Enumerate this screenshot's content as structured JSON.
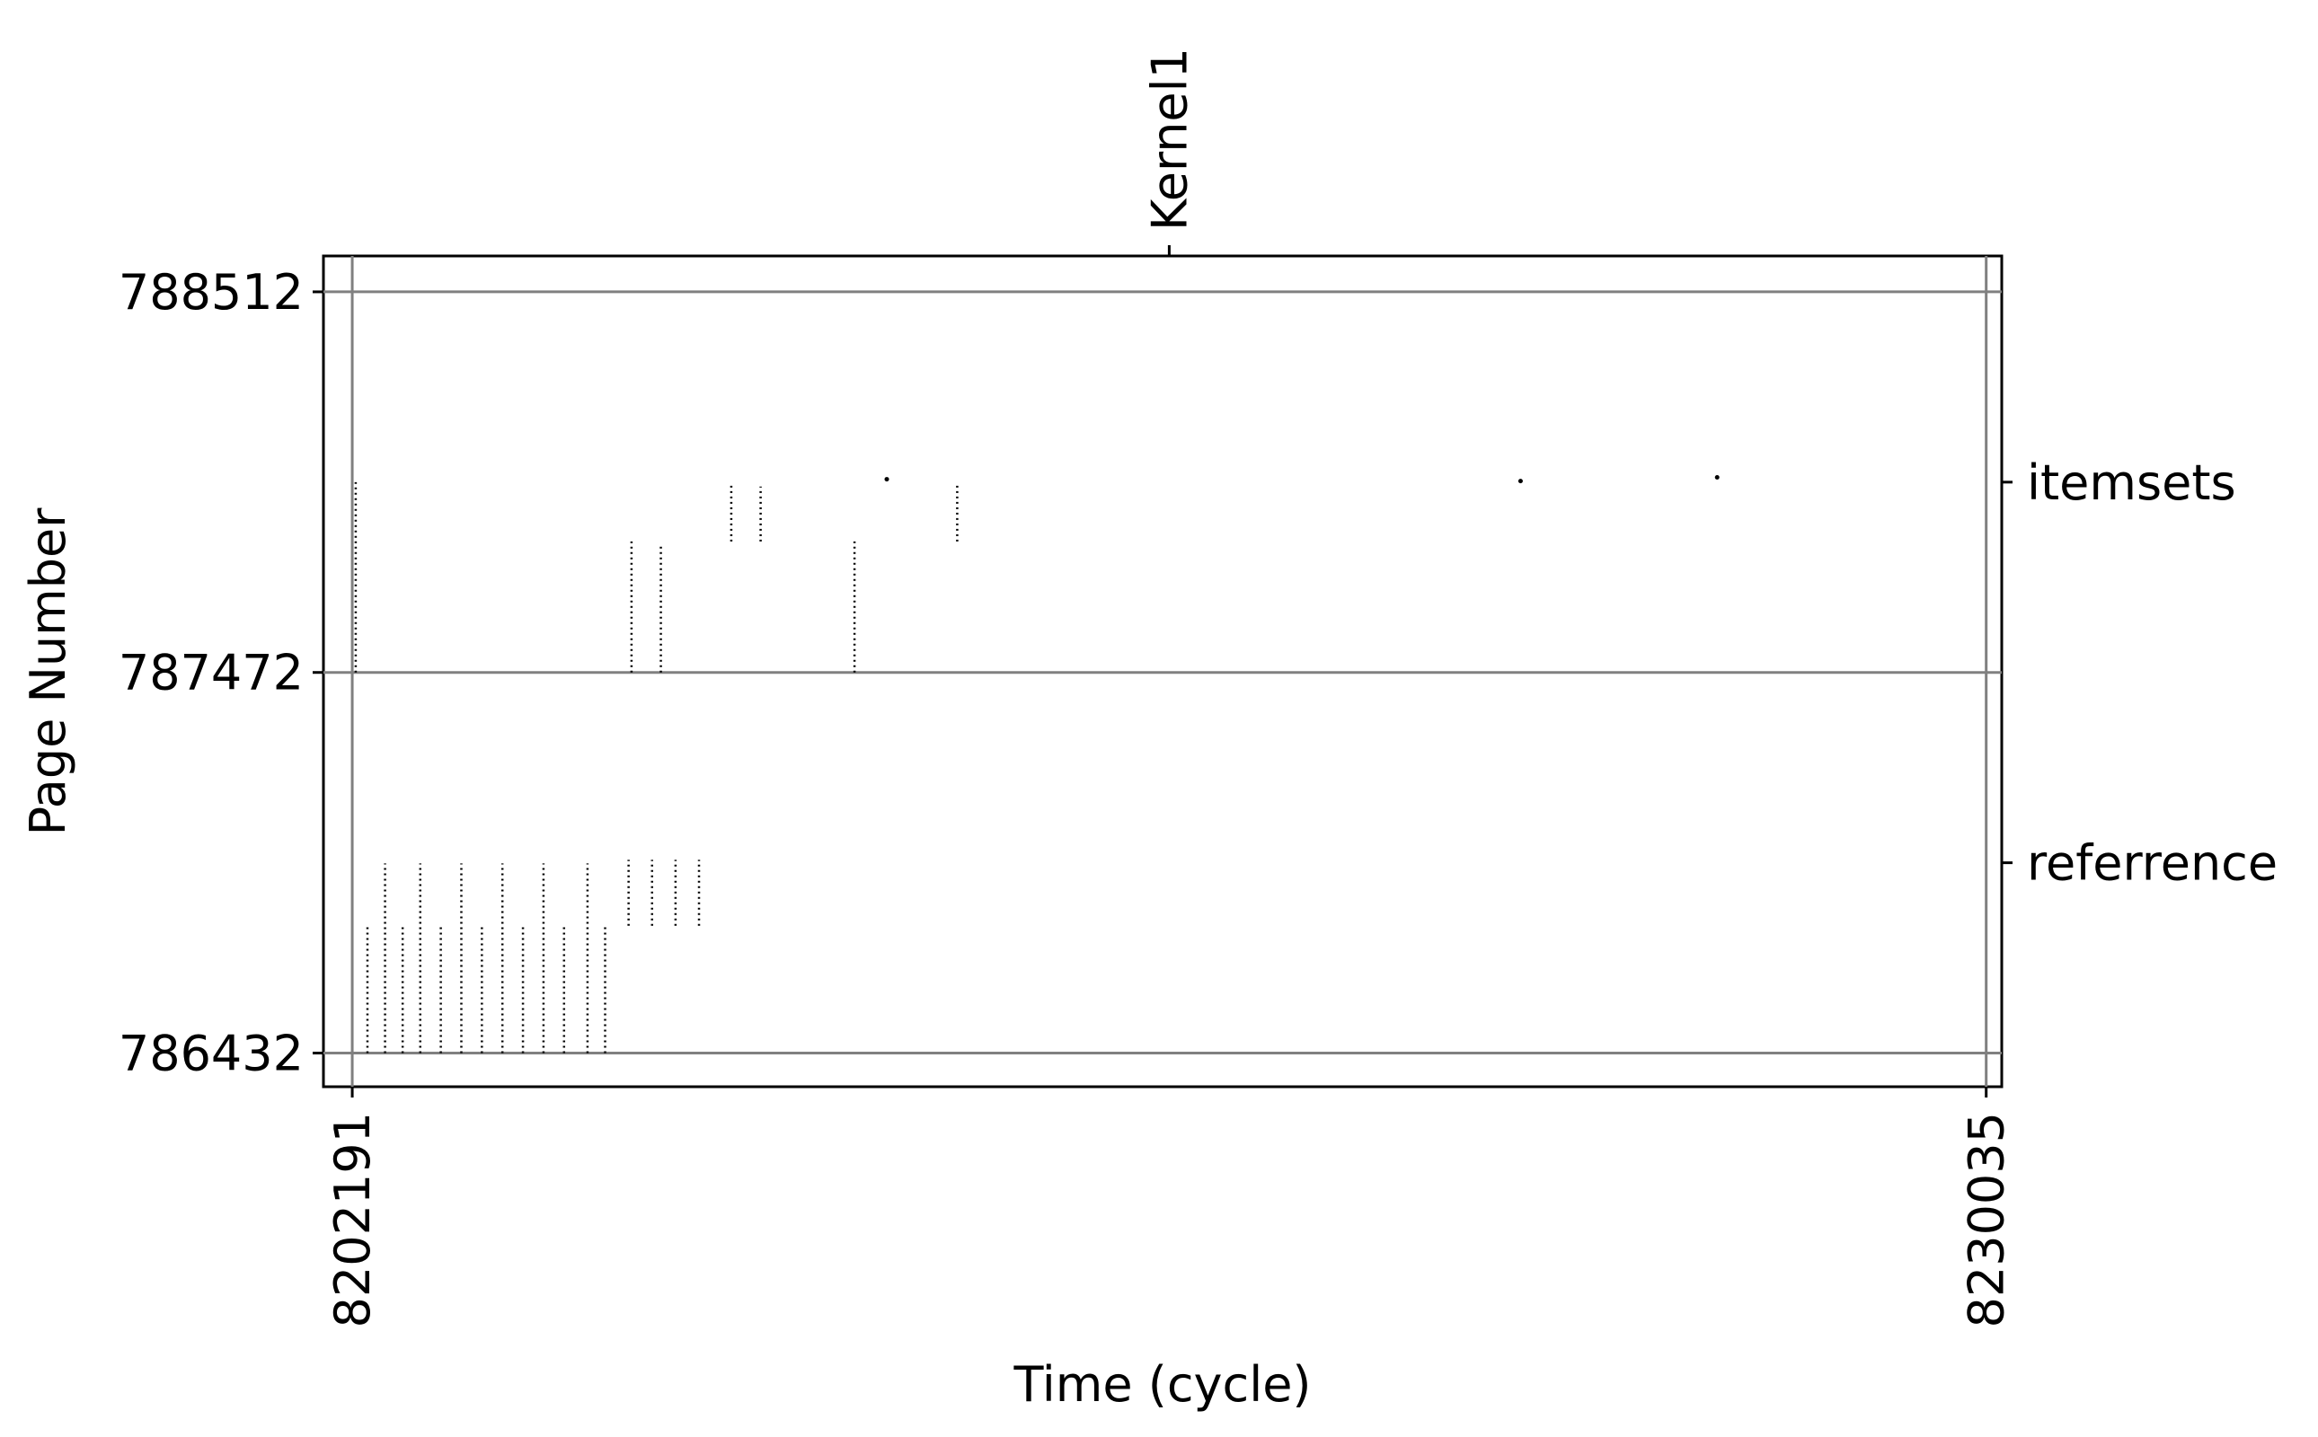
{
  "chart_data": {
    "type": "scatter",
    "title": "",
    "xlabel": "Time (cycle)",
    "ylabel": "Page Number",
    "xlim": [
      8201700,
      8230300
    ],
    "ylim": [
      786340,
      788610
    ],
    "x_ticks": [
      8202191,
      8230035
    ],
    "x_tick_labels": [
      "8202191",
      "8230035"
    ],
    "y_ticks": [
      786432,
      787472,
      788512
    ],
    "y_tick_labels": [
      "786432",
      "787472",
      "788512"
    ],
    "top_ticks": [
      {
        "x": 8216113,
        "label": "Kernel1"
      }
    ],
    "right_ticks": [
      {
        "y": 787992,
        "label": "itemsets"
      },
      {
        "y": 786952,
        "label": "referrence"
      }
    ],
    "grid": true,
    "marker_color": "#000000",
    "grid_color": "#808080",
    "series": [
      {
        "values": [
          {
            "x": 8202250,
            "y_range": [
              787472,
              787992
            ]
          },
          {
            "x": 8206950,
            "y_range": [
              787472,
              787830
            ]
          },
          {
            "x": 8207450,
            "y_range": [
              787472,
              787820
            ]
          },
          {
            "x": 8208650,
            "y_range": [
              787830,
              787992
            ]
          },
          {
            "x": 8209150,
            "y_range": [
              787830,
              787980
            ]
          },
          {
            "x": 8210750,
            "y_range": [
              787472,
              787830
            ]
          },
          {
            "x": 8212500,
            "y_range": [
              787830,
              787992
            ]
          },
          {
            "x": 8211300,
            "y": 788000
          },
          {
            "x": 8222100,
            "y": 787995
          },
          {
            "x": 8225450,
            "y": 788005
          },
          {
            "x": 8202450,
            "y_range": [
              786432,
              786780
            ]
          },
          {
            "x": 8202750,
            "y_range": [
              786432,
              786950
            ]
          },
          {
            "x": 8203050,
            "y_range": [
              786432,
              786780
            ]
          },
          {
            "x": 8203350,
            "y_range": [
              786432,
              786950
            ]
          },
          {
            "x": 8203700,
            "y_range": [
              786432,
              786780
            ]
          },
          {
            "x": 8204050,
            "y_range": [
              786432,
              786950
            ]
          },
          {
            "x": 8204400,
            "y_range": [
              786432,
              786780
            ]
          },
          {
            "x": 8204750,
            "y_range": [
              786432,
              786950
            ]
          },
          {
            "x": 8205100,
            "y_range": [
              786432,
              786780
            ]
          },
          {
            "x": 8205450,
            "y_range": [
              786432,
              786950
            ]
          },
          {
            "x": 8205800,
            "y_range": [
              786432,
              786780
            ]
          },
          {
            "x": 8206200,
            "y_range": [
              786432,
              786950
            ]
          },
          {
            "x": 8206500,
            "y_range": [
              786432,
              786780
            ]
          },
          {
            "x": 8206900,
            "y_range": [
              786780,
              786960
            ]
          },
          {
            "x": 8207300,
            "y_range": [
              786780,
              786960
            ]
          },
          {
            "x": 8207700,
            "y_range": [
              786780,
              786960
            ]
          },
          {
            "x": 8208100,
            "y_range": [
              786780,
              786960
            ]
          }
        ]
      }
    ]
  }
}
